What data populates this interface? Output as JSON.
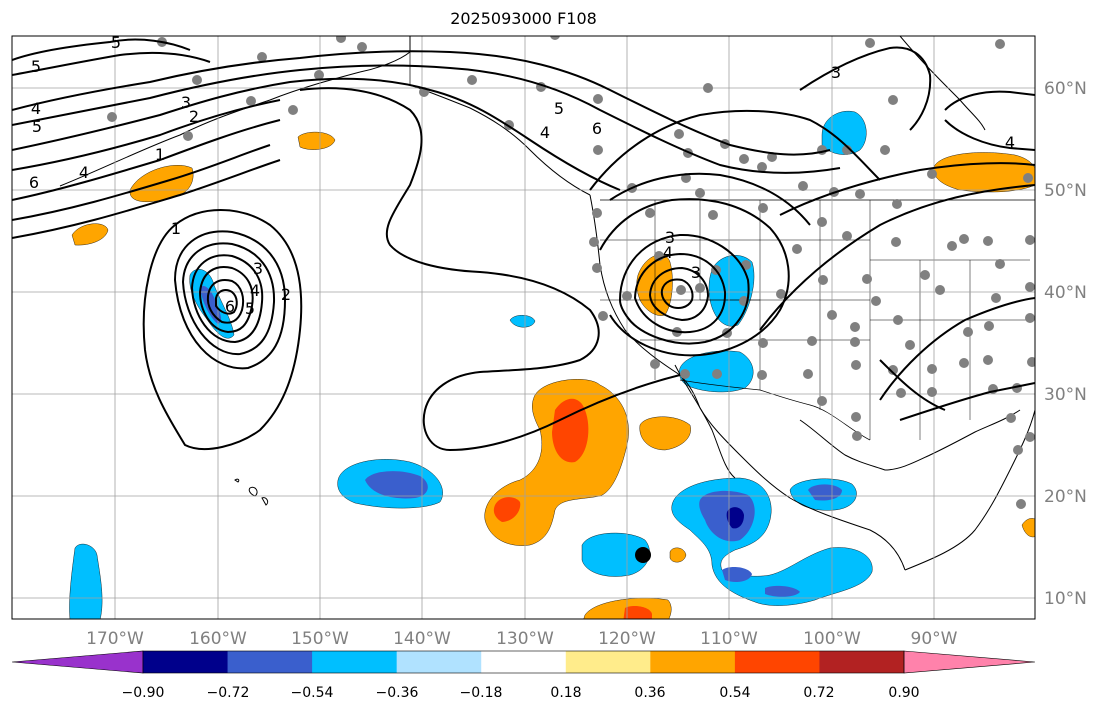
{
  "title": "2025093000 F108",
  "map": {
    "lon_range": [
      -180,
      -80
    ],
    "lat_range": [
      8,
      65
    ],
    "projection": "PlateCarree",
    "gridlines": true,
    "lon_labels": [
      "170°W",
      "160°W",
      "150°W",
      "140°W",
      "130°W",
      "120°W",
      "110°W",
      "100°W",
      "90°W"
    ],
    "lat_labels": [
      "60°N",
      "50°N",
      "40°N",
      "30°N",
      "20°N",
      "10°N"
    ],
    "contour_labels": [
      "5",
      "5",
      "4",
      "5",
      "6",
      "4",
      "3",
      "2",
      "1",
      "1",
      "2",
      "3",
      "4",
      "5",
      "6",
      "5",
      "4",
      "6",
      "3",
      "3",
      "4",
      "3",
      "4"
    ],
    "marker_point": {
      "lon": -118,
      "lat": 14
    }
  },
  "colorbar": {
    "tick_labels": [
      "−0.90",
      "−0.72",
      "−0.54",
      "−0.36",
      "−0.18",
      "0.18",
      "0.36",
      "0.54",
      "0.72",
      "0.90"
    ],
    "colors": [
      "#9932cc",
      "#00008b",
      "#3a5fcd",
      "#00bfff",
      "#b0e2ff",
      "#ffffff",
      "#ffec8b",
      "#ffa500",
      "#ff4500",
      "#b22222",
      "#ff82ab"
    ]
  },
  "palette": {
    "land_outline": "#000000",
    "grid": "#a0a0a0",
    "station_dot": "#808080",
    "label_gray": "#808080"
  }
}
